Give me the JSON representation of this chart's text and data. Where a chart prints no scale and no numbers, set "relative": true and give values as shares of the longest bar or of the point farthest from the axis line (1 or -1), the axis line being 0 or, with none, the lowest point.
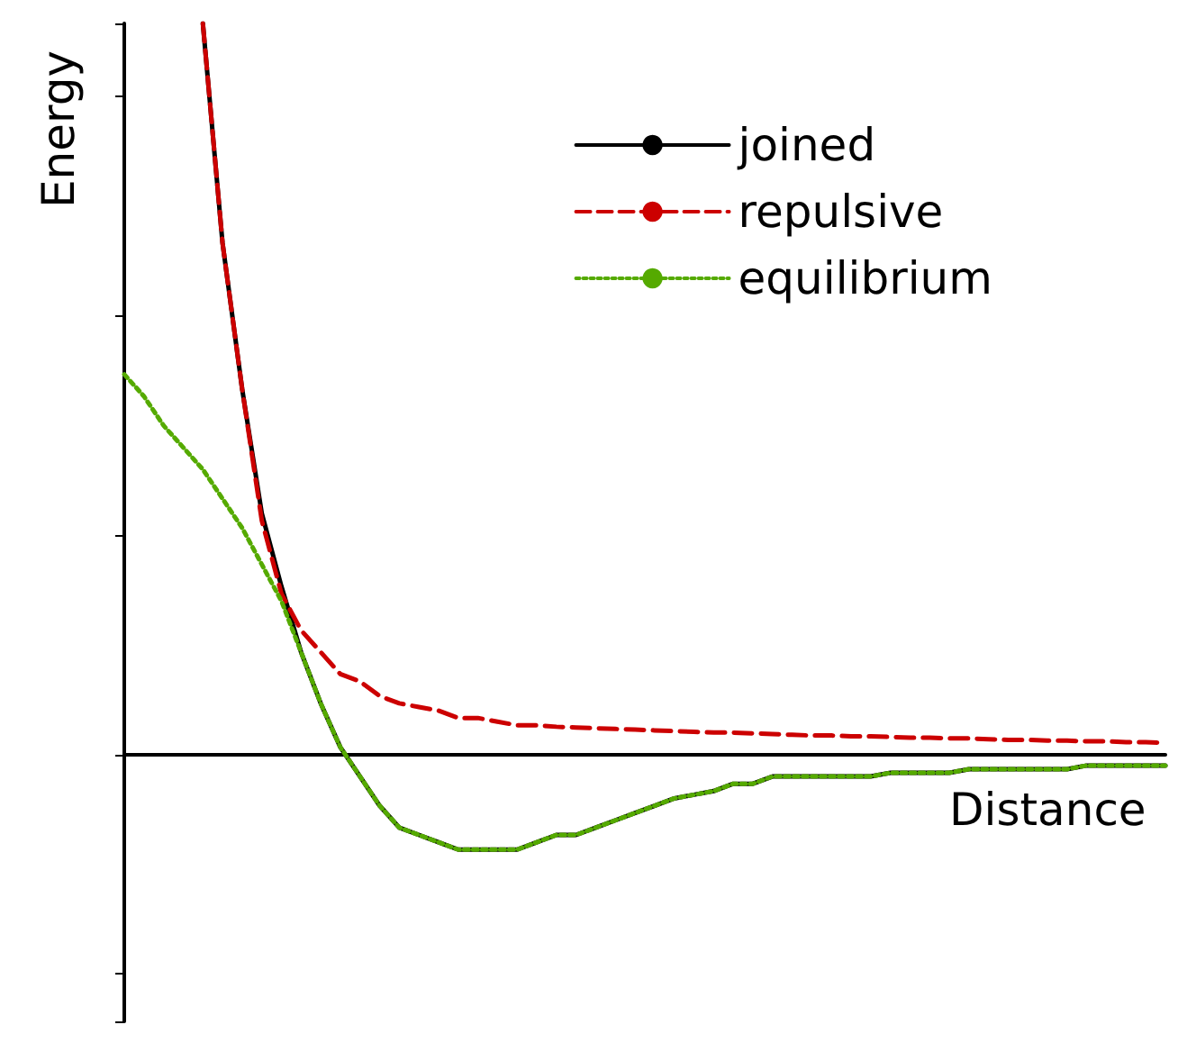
{
  "chart_data": {
    "type": "line",
    "relative": true,
    "xlabel": "Distance",
    "ylabel": "Energy",
    "legend": "top right",
    "grid": false,
    "marker": "none",
    "categories": [
      null,
      null,
      null,
      null,
      null,
      null,
      null,
      null,
      null,
      null,
      null,
      null,
      null,
      null,
      null,
      null,
      null,
      null,
      null,
      null,
      null,
      null,
      null,
      null,
      null,
      null,
      null,
      null,
      null,
      null,
      null,
      null,
      null,
      null,
      null,
      null,
      null,
      null,
      null,
      null,
      null,
      null,
      null,
      null,
      null,
      null,
      null,
      null,
      null,
      null,
      null,
      null,
      null,
      null
    ],
    "series": [
      {
        "name": "joined",
        "color": "#000000",
        "line_style": "solid",
        "values": [
          null,
          null,
          null,
          null,
          1.0,
          0.7,
          0.5,
          0.33,
          0.23,
          0.14,
          0.07,
          0.01,
          -0.03,
          -0.07,
          -0.1,
          -0.11,
          -0.12,
          -0.13,
          -0.13,
          -0.13,
          -0.13,
          -0.12,
          -0.11,
          -0.11,
          -0.1,
          -0.09,
          -0.08,
          -0.07,
          -0.06,
          -0.055,
          -0.05,
          -0.04,
          -0.04,
          -0.03,
          -0.03,
          -0.03,
          -0.03,
          -0.03,
          -0.03,
          -0.025,
          -0.025,
          -0.025,
          -0.025,
          -0.02,
          -0.02,
          -0.02,
          -0.02,
          -0.02,
          -0.02,
          -0.015,
          -0.015,
          -0.015,
          -0.015,
          -0.015
        ]
      },
      {
        "name": "repulsive",
        "color": "#cc0000",
        "line_style": "dashed",
        "values": [
          null,
          null,
          null,
          null,
          1.0,
          0.7,
          0.5,
          0.32,
          0.22,
          0.17,
          0.14,
          0.11,
          0.1,
          0.08,
          0.07,
          0.065,
          0.06,
          0.05,
          0.05,
          0.045,
          0.04,
          0.04,
          0.038,
          0.037,
          0.036,
          0.035,
          0.034,
          0.033,
          0.032,
          0.031,
          0.03,
          0.03,
          0.029,
          0.028,
          0.027,
          0.026,
          0.026,
          0.025,
          0.025,
          0.024,
          0.023,
          0.023,
          0.022,
          0.022,
          0.021,
          0.02,
          0.02,
          0.019,
          0.019,
          0.018,
          0.018,
          0.017,
          0.017,
          0.016
        ]
      },
      {
        "name": "equilibrium",
        "color": "#55aa00",
        "line_style": "dotted",
        "values": [
          0.52,
          0.49,
          0.45,
          0.42,
          0.39,
          0.35,
          0.31,
          0.26,
          0.21,
          0.14,
          0.07,
          0.01,
          -0.03,
          -0.07,
          -0.1,
          -0.11,
          -0.12,
          -0.13,
          -0.13,
          -0.13,
          -0.13,
          -0.12,
          -0.11,
          -0.11,
          -0.1,
          -0.09,
          -0.08,
          -0.07,
          -0.06,
          -0.055,
          -0.05,
          -0.04,
          -0.04,
          -0.03,
          -0.03,
          -0.03,
          -0.03,
          -0.03,
          -0.03,
          -0.025,
          -0.025,
          -0.025,
          -0.025,
          -0.02,
          -0.02,
          -0.02,
          -0.02,
          -0.02,
          -0.02,
          -0.015,
          -0.015,
          -0.015,
          -0.015,
          -0.015
        ]
      }
    ]
  }
}
